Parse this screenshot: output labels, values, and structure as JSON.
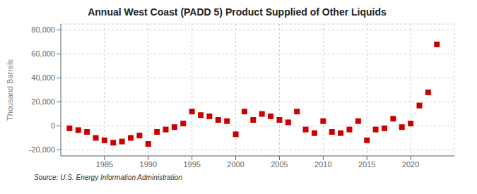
{
  "chart_data": {
    "type": "scatter",
    "title": "Annual West Coast (PADD 5) Product Supplied of Other Liquids",
    "ylabel": "Thousand Barrels",
    "annotation": "Source: U.S. Energy Information Administration",
    "x": [
      1981,
      1982,
      1983,
      1984,
      1985,
      1986,
      1987,
      1988,
      1989,
      1990,
      1991,
      1992,
      1993,
      1994,
      1995,
      1996,
      1997,
      1998,
      1999,
      2000,
      2001,
      2002,
      2003,
      2004,
      2005,
      2006,
      2007,
      2008,
      2009,
      2010,
      2011,
      2012,
      2013,
      2014,
      2015,
      2016,
      2017,
      2018,
      2019,
      2020,
      2021,
      2022,
      2023
    ],
    "values": [
      -2000,
      -3500,
      -5000,
      -10000,
      -12000,
      -14000,
      -13000,
      -10000,
      -8000,
      -15000,
      -5000,
      -3000,
      -1000,
      2000,
      12000,
      9000,
      8000,
      5000,
      4000,
      -7000,
      12000,
      5000,
      10000,
      8000,
      5000,
      3000,
      12000,
      -3000,
      -6000,
      4000,
      -5000,
      -6000,
      -3000,
      4000,
      -12000,
      -3000,
      -2000,
      6000,
      -1000,
      2000,
      17000,
      28000,
      68000
    ],
    "color": "#cc0000",
    "marker": "square",
    "xlim": [
      1980,
      2025
    ],
    "xticks": [
      1985,
      1990,
      1995,
      2000,
      2005,
      2010,
      2015,
      2020
    ],
    "ylim": [
      -25000,
      85000
    ],
    "yticks": [
      {
        "value": -20000,
        "label": "-20,000"
      },
      0,
      {
        "value": 20000,
        "label": "20,000"
      },
      {
        "value": 40000,
        "label": "40,000"
      },
      {
        "value": 60000,
        "label": "60,000"
      },
      {
        "value": 80000,
        "label": "80,000"
      }
    ],
    "grid": true
  }
}
